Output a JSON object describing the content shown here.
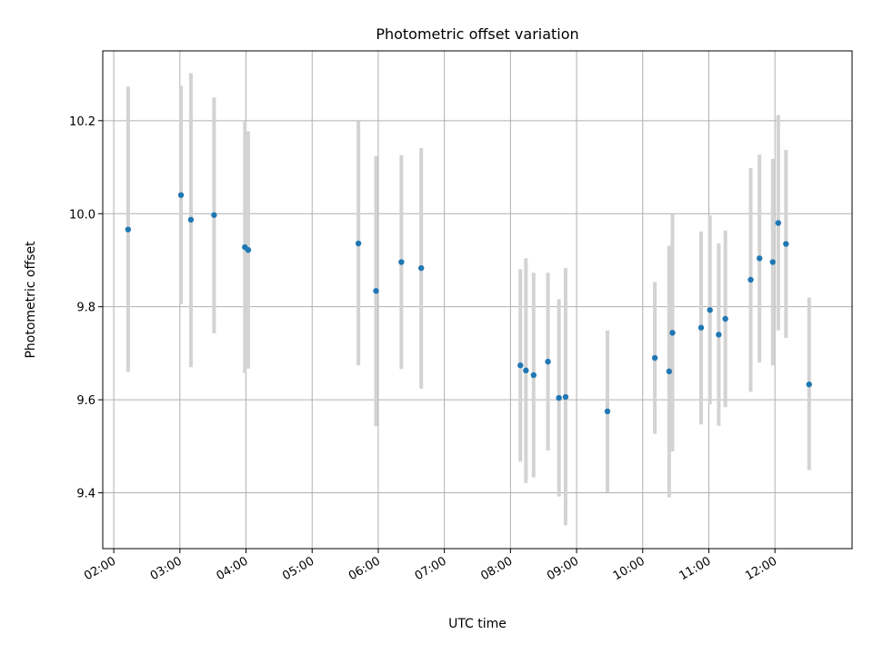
{
  "chart_data": {
    "type": "scatter",
    "title": "Photometric offset variation",
    "xlabel": "UTC time",
    "ylabel": "Photometric offset",
    "xlim": [
      "01:50",
      "13:10"
    ],
    "ylim": [
      9.28,
      10.35
    ],
    "grid": true,
    "x_ticks": [
      "02:00",
      "03:00",
      "04:00",
      "05:00",
      "06:00",
      "07:00",
      "08:00",
      "09:00",
      "10:00",
      "11:00",
      "12:00"
    ],
    "y_ticks": [
      9.4,
      9.6,
      9.8,
      10.0,
      10.2
    ],
    "y_tick_labels": [
      "9.4",
      "9.6",
      "9.8",
      "10.0",
      "10.2"
    ],
    "colors": {
      "points": "#1f77b4",
      "errorbars": "#d3d3d3",
      "grid": "#b0b0b0"
    },
    "series": [
      {
        "points": [
          {
            "x": "02:13",
            "y": 9.966,
            "ylow": 9.66,
            "yhigh": 10.273
          },
          {
            "x": "03:01",
            "y": 10.04,
            "ylow": 9.806,
            "yhigh": 10.275
          },
          {
            "x": "03:10",
            "y": 9.987,
            "ylow": 9.67,
            "yhigh": 10.302
          },
          {
            "x": "03:31",
            "y": 9.997,
            "ylow": 9.743,
            "yhigh": 10.25
          },
          {
            "x": "03:59",
            "y": 9.928,
            "ylow": 9.657,
            "yhigh": 10.198
          },
          {
            "x": "04:02",
            "y": 9.922,
            "ylow": 9.667,
            "yhigh": 10.177
          },
          {
            "x": "05:42",
            "y": 9.936,
            "ylow": 9.674,
            "yhigh": 10.199
          },
          {
            "x": "05:58",
            "y": 9.834,
            "ylow": 9.543,
            "yhigh": 10.124
          },
          {
            "x": "06:21",
            "y": 9.896,
            "ylow": 9.666,
            "yhigh": 10.126
          },
          {
            "x": "06:39",
            "y": 9.883,
            "ylow": 9.624,
            "yhigh": 10.141
          },
          {
            "x": "08:09",
            "y": 9.674,
            "ylow": 9.467,
            "yhigh": 9.881
          },
          {
            "x": "08:14",
            "y": 9.663,
            "ylow": 9.421,
            "yhigh": 9.904
          },
          {
            "x": "08:21",
            "y": 9.653,
            "ylow": 9.433,
            "yhigh": 9.873
          },
          {
            "x": "08:34",
            "y": 9.682,
            "ylow": 9.491,
            "yhigh": 9.873
          },
          {
            "x": "08:44",
            "y": 9.604,
            "ylow": 9.392,
            "yhigh": 9.816
          },
          {
            "x": "08:50",
            "y": 9.606,
            "ylow": 9.33,
            "yhigh": 9.883
          },
          {
            "x": "09:28",
            "y": 9.575,
            "ylow": 9.401,
            "yhigh": 9.749
          },
          {
            "x": "10:11",
            "y": 9.69,
            "ylow": 9.527,
            "yhigh": 9.853
          },
          {
            "x": "10:24",
            "y": 9.661,
            "ylow": 9.39,
            "yhigh": 9.931
          },
          {
            "x": "10:27",
            "y": 9.744,
            "ylow": 9.489,
            "yhigh": 9.999
          },
          {
            "x": "10:53",
            "y": 9.755,
            "ylow": 9.547,
            "yhigh": 9.962
          },
          {
            "x": "11:01",
            "y": 9.793,
            "ylow": 9.59,
            "yhigh": 9.996
          },
          {
            "x": "11:09",
            "y": 9.74,
            "ylow": 9.544,
            "yhigh": 9.936
          },
          {
            "x": "11:15",
            "y": 9.774,
            "ylow": 9.584,
            "yhigh": 9.964
          },
          {
            "x": "11:38",
            "y": 9.858,
            "ylow": 9.617,
            "yhigh": 10.098
          },
          {
            "x": "11:46",
            "y": 9.904,
            "ylow": 9.68,
            "yhigh": 10.127
          },
          {
            "x": "11:58",
            "y": 9.896,
            "ylow": 9.674,
            "yhigh": 10.118
          },
          {
            "x": "12:03",
            "y": 9.98,
            "ylow": 9.749,
            "yhigh": 10.212
          },
          {
            "x": "12:10",
            "y": 9.935,
            "ylow": 9.733,
            "yhigh": 10.137
          },
          {
            "x": "12:31",
            "y": 9.633,
            "ylow": 9.449,
            "yhigh": 9.82
          }
        ]
      }
    ]
  }
}
